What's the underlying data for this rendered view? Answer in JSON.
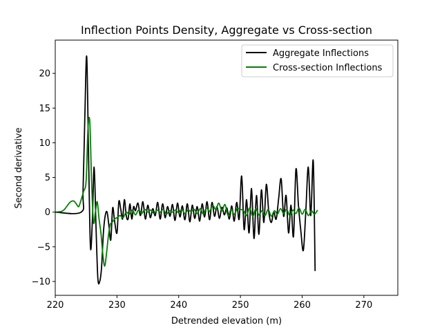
{
  "chart_data": {
    "type": "line",
    "title": "Inflection Points Density, Aggregate vs Cross-section",
    "xlabel": "Detrended elevation (m)",
    "ylabel": "Second derivative",
    "xlim": [
      220,
      275.5
    ],
    "ylim": [
      -12,
      24.8
    ],
    "xticks": [
      220,
      230,
      240,
      250,
      260,
      270
    ],
    "yticks": [
      -10,
      -5,
      0,
      5,
      10,
      15,
      20
    ],
    "ytick_labels": [
      "−10",
      "−5",
      "0",
      "5",
      "10",
      "15",
      "20"
    ],
    "grid": false,
    "legend_position": "top-right",
    "series": [
      {
        "name": "Aggregate Inflections",
        "color": "#000000",
        "x": [
          220,
          224.2,
          224.5,
          224.8,
          225.1,
          225.4,
          225.7,
          226.0,
          226.3,
          226.6,
          226.9,
          227.2,
          227.5,
          227.8,
          228.1,
          228.4,
          228.7,
          229.0,
          229.3,
          229.6,
          230.0,
          230.3,
          230.6,
          230.9,
          231.2,
          231.5,
          231.8,
          232.1,
          232.4,
          232.7,
          233.0,
          233.4,
          233.8,
          234.2,
          234.6,
          235.0,
          235.4,
          235.8,
          236.2,
          236.6,
          237.0,
          237.4,
          237.8,
          238.2,
          238.6,
          239.0,
          239.4,
          239.8,
          240.2,
          240.6,
          241.0,
          241.4,
          241.8,
          242.2,
          242.6,
          243.0,
          243.4,
          243.8,
          244.2,
          244.6,
          245.0,
          245.4,
          245.8,
          246.2,
          246.6,
          247.0,
          247.4,
          247.8,
          248.2,
          248.6,
          249.0,
          249.4,
          249.8,
          250.2,
          250.6,
          251.0,
          251.4,
          251.8,
          252.2,
          252.6,
          253.0,
          253.4,
          253.8,
          254.2,
          254.6,
          255.0,
          255.4,
          255.8,
          256.2,
          256.6,
          257.0,
          257.4,
          257.8,
          258.2,
          258.6,
          259.0,
          259.4,
          259.8,
          260.2,
          260.6,
          261.0,
          261.4,
          261.8,
          262.1
        ],
        "y": [
          0,
          0,
          3,
          14,
          22.4,
          8,
          -5,
          -1.5,
          6.5,
          -2,
          -9.5,
          -10,
          -8,
          -3,
          -0.5,
          0,
          -2,
          -4,
          0.6,
          -1.2,
          -3,
          1.5,
          0.5,
          -1,
          1.8,
          -0.5,
          -1,
          1.2,
          -1,
          0.8,
          0.2,
          1.3,
          -0.5,
          1.5,
          -1,
          1,
          -0.8,
          0.5,
          -0.5,
          1.4,
          -1,
          1.2,
          -0.8,
          0.8,
          -0.6,
          1.1,
          -1.2,
          1.3,
          -0.7,
          0.9,
          -1.1,
          1.2,
          -1.4,
          1,
          -0.9,
          0.8,
          -1.3,
          1.2,
          -0.7,
          1.5,
          -1.1,
          1.4,
          -0.6,
          0.8,
          -0.9,
          0.7,
          -0.4,
          0.6,
          -1,
          0.9,
          -1.3,
          1.4,
          -1,
          5.2,
          -2.5,
          1.8,
          -3,
          3.4,
          -3.8,
          2.4,
          -3.2,
          3.2,
          -1.5,
          4,
          0,
          -1.5,
          0,
          -1,
          2,
          4.8,
          -0.6,
          2.4,
          -3,
          1,
          -3.5,
          6.2,
          1,
          -2.8,
          -5.5,
          0.2,
          6.5,
          -0.5,
          7.4,
          -8.5
        ]
      },
      {
        "name": "Cross-section Inflections",
        "color": "#008000",
        "x": [
          220,
          221,
          221.5,
          222,
          222.5,
          223,
          223.4,
          223.8,
          224.2,
          224.6,
          225.0,
          225.3,
          225.6,
          225.9,
          226.2,
          226.5,
          226.8,
          227.1,
          227.4,
          227.7,
          228.0,
          228.3,
          228.6,
          228.9,
          229.2,
          229.6,
          230.0,
          230.5,
          231.0,
          231.5,
          232.0,
          232.5,
          233.0,
          233.5,
          234.0,
          234.5,
          235.0,
          235.5,
          236.0,
          236.5,
          237.0,
          237.5,
          238.0,
          238.5,
          239.0,
          239.5,
          240.0,
          240.5,
          241.0,
          241.5,
          242.0,
          242.5,
          243.0,
          243.5,
          244.0,
          244.5,
          245.0,
          245.5,
          246.0,
          246.5,
          247.0,
          247.5,
          248.0,
          248.5,
          249.0,
          249.5,
          250.0,
          250.5,
          251.0,
          251.5,
          252.0,
          252.5,
          253.0,
          253.5,
          254.0,
          254.5,
          255.0,
          255.5,
          256.0,
          256.5,
          257.0,
          257.5,
          258.0,
          258.5,
          259.0,
          259.5,
          260.0,
          260.5,
          261.0,
          261.5,
          262.0,
          262.5
        ],
        "y": [
          0,
          0.1,
          0.4,
          1,
          1.5,
          1.6,
          1.2,
          0.8,
          1.8,
          3,
          4.5,
          12,
          13,
          4,
          -1.5,
          0,
          1.5,
          -1,
          -3,
          -6,
          -7.8,
          -6,
          -3.5,
          -1.8,
          -1.5,
          -1,
          -0.8,
          -0.5,
          -0.8,
          0,
          -0.3,
          0.3,
          -0.4,
          0.3,
          -0.2,
          0.4,
          0,
          0.3,
          -0.2,
          0.3,
          0,
          0.4,
          -0.3,
          0.2,
          0,
          0.3,
          -0.1,
          0.4,
          -0.2,
          0.3,
          0.1,
          0.4,
          -0.2,
          0.5,
          -0.3,
          0.6,
          0.1,
          1,
          0.4,
          1.3,
          0.2,
          1.1,
          -0.5,
          0.4,
          -0.3,
          0.5,
          0.4,
          0.2,
          -0.5,
          0.6,
          -0.6,
          0.5,
          -0.4,
          0.2,
          -0.5,
          0.4,
          -0.6,
          0.2,
          -0.3,
          0.5,
          -0.2,
          0.4,
          -0.5,
          0.3,
          -0.2,
          0.6,
          -0.3,
          0.4,
          -0.5,
          0.2,
          -0.3,
          0.3
        ]
      }
    ]
  }
}
